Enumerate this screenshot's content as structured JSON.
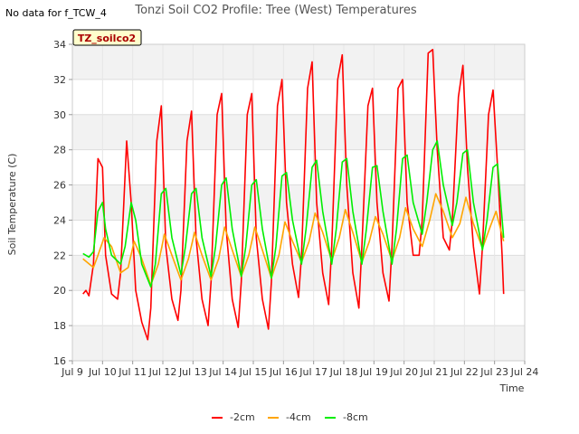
{
  "chart_data": {
    "type": "line",
    "title": "Tonzi Soil CO2 Profile: Tree (West) Temperatures",
    "note": "No data for f_TCW_4",
    "badge": "TZ_soilco2",
    "xlabel": "Time",
    "ylabel": "Soil Temperature (C)",
    "xlim": [
      9,
      24
    ],
    "ylim": [
      16,
      34
    ],
    "x_ticks": [
      {
        "v": 9,
        "label": "Jul 9"
      },
      {
        "v": 10,
        "label": "Jul 10"
      },
      {
        "v": 11,
        "label": "Jul 11"
      },
      {
        "v": 12,
        "label": "Jul 12"
      },
      {
        "v": 13,
        "label": "Jul 13"
      },
      {
        "v": 14,
        "label": "Jul 14"
      },
      {
        "v": 15,
        "label": "Jul 15"
      },
      {
        "v": 16,
        "label": "Jul 16"
      },
      {
        "v": 17,
        "label": "Jul 17"
      },
      {
        "v": 18,
        "label": "Jul 18"
      },
      {
        "v": 19,
        "label": "Jul 19"
      },
      {
        "v": 20,
        "label": "Jul 20"
      },
      {
        "v": 21,
        "label": "Jul 21"
      },
      {
        "v": 22,
        "label": "Jul 22"
      },
      {
        "v": 23,
        "label": "Jul 23"
      },
      {
        "v": 24,
        "label": "Jul 24"
      }
    ],
    "y_ticks": [
      16,
      18,
      20,
      22,
      24,
      26,
      28,
      30,
      32,
      34
    ],
    "grid": true,
    "legend_position": "bottom",
    "series": [
      {
        "name": "-2cm",
        "color": "#ff0000",
        "x": [
          9.35,
          9.45,
          9.55,
          9.7,
          9.85,
          10.0,
          10.1,
          10.3,
          10.5,
          10.6,
          10.8,
          10.95,
          11.1,
          11.3,
          11.5,
          11.6,
          11.8,
          11.95,
          12.1,
          12.3,
          12.5,
          12.6,
          12.8,
          12.95,
          13.1,
          13.3,
          13.5,
          13.6,
          13.8,
          13.95,
          14.1,
          14.3,
          14.5,
          14.6,
          14.8,
          14.95,
          15.1,
          15.3,
          15.5,
          15.6,
          15.8,
          15.95,
          16.1,
          16.3,
          16.5,
          16.6,
          16.8,
          16.95,
          17.1,
          17.3,
          17.5,
          17.6,
          17.8,
          17.95,
          18.1,
          18.3,
          18.5,
          18.6,
          18.8,
          18.95,
          19.1,
          19.3,
          19.5,
          19.6,
          19.8,
          19.95,
          20.1,
          20.3,
          20.5,
          20.6,
          20.8,
          20.95,
          21.1,
          21.3,
          21.5,
          21.6,
          21.8,
          21.95,
          22.1,
          22.3,
          22.5,
          22.6,
          22.8,
          22.95,
          23.1,
          23.25,
          23.3
        ],
        "y": [
          19.8,
          20.0,
          19.7,
          21.5,
          27.5,
          27.0,
          22.0,
          19.8,
          19.5,
          21.0,
          28.5,
          25.0,
          20.0,
          18.2,
          17.2,
          19.0,
          28.5,
          30.5,
          22.5,
          19.5,
          18.3,
          20.0,
          28.5,
          30.2,
          23.0,
          19.5,
          18.0,
          20.5,
          30.0,
          31.2,
          23.5,
          19.5,
          17.9,
          20.5,
          30.0,
          31.2,
          23.0,
          19.5,
          17.8,
          20.5,
          30.5,
          32.0,
          25.0,
          21.5,
          19.6,
          22.0,
          31.5,
          33.0,
          25.0,
          21.0,
          19.2,
          22.5,
          32.0,
          33.4,
          26.0,
          21.0,
          19.0,
          22.5,
          30.5,
          31.5,
          25.0,
          21.0,
          19.4,
          22.5,
          31.5,
          32.0,
          25.0,
          22.0,
          22.0,
          24.0,
          33.5,
          33.7,
          28.0,
          23.0,
          22.3,
          24.0,
          31.0,
          32.8,
          27.0,
          22.5,
          19.8,
          22.5,
          30.0,
          31.4,
          27.0,
          22.0,
          19.8
        ]
      },
      {
        "name": "-4cm",
        "color": "#ffa500",
        "x": [
          9.35,
          9.7,
          9.85,
          10.05,
          10.3,
          10.6,
          10.85,
          11.05,
          11.3,
          11.6,
          11.85,
          12.05,
          12.3,
          12.6,
          12.85,
          13.05,
          13.3,
          13.6,
          13.85,
          14.05,
          14.3,
          14.6,
          14.85,
          15.05,
          15.3,
          15.6,
          15.85,
          16.05,
          16.3,
          16.6,
          16.85,
          17.05,
          17.3,
          17.6,
          17.85,
          18.05,
          18.3,
          18.6,
          18.85,
          19.05,
          19.3,
          19.6,
          19.85,
          20.05,
          20.3,
          20.6,
          20.85,
          21.05,
          21.3,
          21.6,
          21.85,
          22.05,
          22.3,
          22.6,
          22.85,
          23.05,
          23.3
        ],
        "y": [
          21.8,
          21.3,
          22.0,
          23.0,
          22.5,
          21.0,
          21.3,
          22.8,
          21.8,
          20.3,
          21.5,
          23.2,
          22.0,
          20.6,
          21.8,
          23.3,
          22.0,
          20.6,
          21.8,
          23.6,
          22.3,
          20.8,
          22.0,
          23.6,
          22.3,
          20.7,
          22.0,
          23.9,
          22.8,
          21.6,
          22.8,
          24.4,
          23.3,
          21.7,
          23.0,
          24.6,
          23.3,
          21.6,
          22.8,
          24.2,
          23.2,
          21.7,
          23.0,
          24.7,
          23.5,
          22.5,
          24.0,
          25.5,
          24.5,
          23.0,
          23.8,
          25.3,
          23.8,
          22.4,
          23.6,
          24.5,
          22.8
        ]
      },
      {
        "name": "-8cm",
        "color": "#00ee00",
        "x": [
          9.35,
          9.55,
          9.7,
          9.85,
          10.0,
          10.1,
          10.3,
          10.6,
          10.75,
          10.95,
          11.1,
          11.3,
          11.6,
          11.75,
          11.95,
          12.1,
          12.3,
          12.6,
          12.75,
          12.95,
          13.1,
          13.3,
          13.6,
          13.75,
          13.95,
          14.1,
          14.3,
          14.6,
          14.75,
          14.95,
          15.1,
          15.3,
          15.6,
          15.75,
          15.95,
          16.1,
          16.3,
          16.6,
          16.75,
          16.95,
          17.1,
          17.3,
          17.6,
          17.75,
          17.95,
          18.1,
          18.3,
          18.6,
          18.75,
          18.95,
          19.1,
          19.3,
          19.6,
          19.75,
          19.95,
          20.1,
          20.3,
          20.6,
          20.75,
          20.95,
          21.1,
          21.3,
          21.6,
          21.75,
          21.95,
          22.1,
          22.3,
          22.6,
          22.75,
          22.95,
          23.1,
          23.3
        ],
        "y": [
          22.1,
          21.9,
          22.2,
          24.5,
          25.0,
          23.5,
          22.0,
          21.5,
          22.5,
          25.0,
          24.0,
          21.5,
          20.2,
          21.5,
          25.5,
          25.8,
          23.0,
          20.9,
          22.5,
          25.5,
          25.8,
          23.0,
          20.8,
          22.5,
          26.0,
          26.4,
          23.5,
          20.8,
          22.5,
          26.0,
          26.3,
          23.5,
          20.7,
          22.5,
          26.5,
          26.7,
          24.0,
          21.5,
          23.5,
          27.0,
          27.4,
          24.5,
          21.5,
          23.5,
          27.3,
          27.5,
          24.5,
          21.5,
          23.5,
          27.0,
          27.1,
          24.5,
          21.5,
          23.5,
          27.5,
          27.7,
          25.0,
          23.2,
          25.0,
          28.0,
          28.5,
          26.0,
          23.7,
          25.0,
          27.8,
          28.0,
          25.0,
          22.3,
          24.0,
          27.0,
          27.2,
          23.0
        ]
      }
    ]
  }
}
